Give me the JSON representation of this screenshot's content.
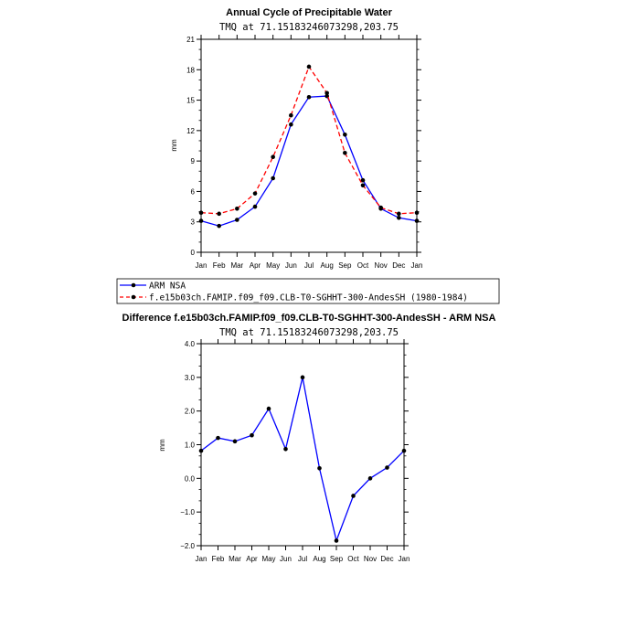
{
  "chart_data": [
    {
      "type": "line",
      "title": "Annual Cycle of Precipitable Water",
      "subtitle": "TMQ at 71.15183246073298,203.75",
      "xlabel": "",
      "ylabel": "mm",
      "categories": [
        "Jan",
        "Feb",
        "Mar",
        "Apr",
        "May",
        "Jun",
        "Jul",
        "Aug",
        "Sep",
        "Oct",
        "Nov",
        "Dec",
        "Jan"
      ],
      "ylim": [
        0,
        21
      ],
      "yticks": [
        0,
        3,
        6,
        9,
        12,
        15,
        18,
        21
      ],
      "ytick_labels": [
        "0",
        "3",
        "6",
        "9",
        "12",
        "15",
        "18",
        "21"
      ],
      "grid": false,
      "series": [
        {
          "name": "ARM NSA",
          "color": "#0000ff",
          "dash": "solid",
          "values": [
            3.1,
            2.6,
            3.2,
            4.5,
            7.3,
            12.6,
            15.3,
            15.4,
            11.6,
            7.1,
            4.3,
            3.4,
            3.1
          ]
        },
        {
          "name": "f.e15b03ch.FAMIP.f09_f09.CLB-T0-SGHHT-300-AndesSH (1980-1984)",
          "color": "#ff0000",
          "dash": "dashed",
          "values": [
            3.9,
            3.8,
            4.3,
            5.8,
            9.4,
            13.5,
            18.3,
            15.7,
            9.8,
            6.6,
            4.4,
            3.8,
            3.9
          ]
        }
      ],
      "legend": {
        "placement": "below"
      }
    },
    {
      "type": "line",
      "title": "Difference f.e15b03ch.FAMIP.f09_f09.CLB-T0-SGHHT-300-AndesSH - ARM NSA",
      "subtitle": "TMQ at 71.15183246073298,203.75",
      "xlabel": "",
      "ylabel": "mm",
      "categories": [
        "Jan",
        "Feb",
        "Mar",
        "Apr",
        "May",
        "Jun",
        "Jul",
        "Aug",
        "Sep",
        "Oct",
        "Nov",
        "Dec",
        "Jan"
      ],
      "ylim": [
        -2.0,
        4.0
      ],
      "yticks": [
        -2,
        -1,
        0,
        1,
        2,
        3,
        4
      ],
      "ytick_labels": [
        "−2.0",
        "−1.0",
        "0.0",
        "1.0",
        "2.0",
        "3.0",
        "4.0"
      ],
      "grid": false,
      "series": [
        {
          "name": "Difference",
          "color": "#0000ff",
          "dash": "solid",
          "values": [
            0.82,
            1.2,
            1.1,
            1.28,
            2.07,
            0.87,
            3.0,
            0.3,
            -1.85,
            -0.52,
            0.0,
            0.32,
            0.82
          ]
        }
      ]
    }
  ]
}
